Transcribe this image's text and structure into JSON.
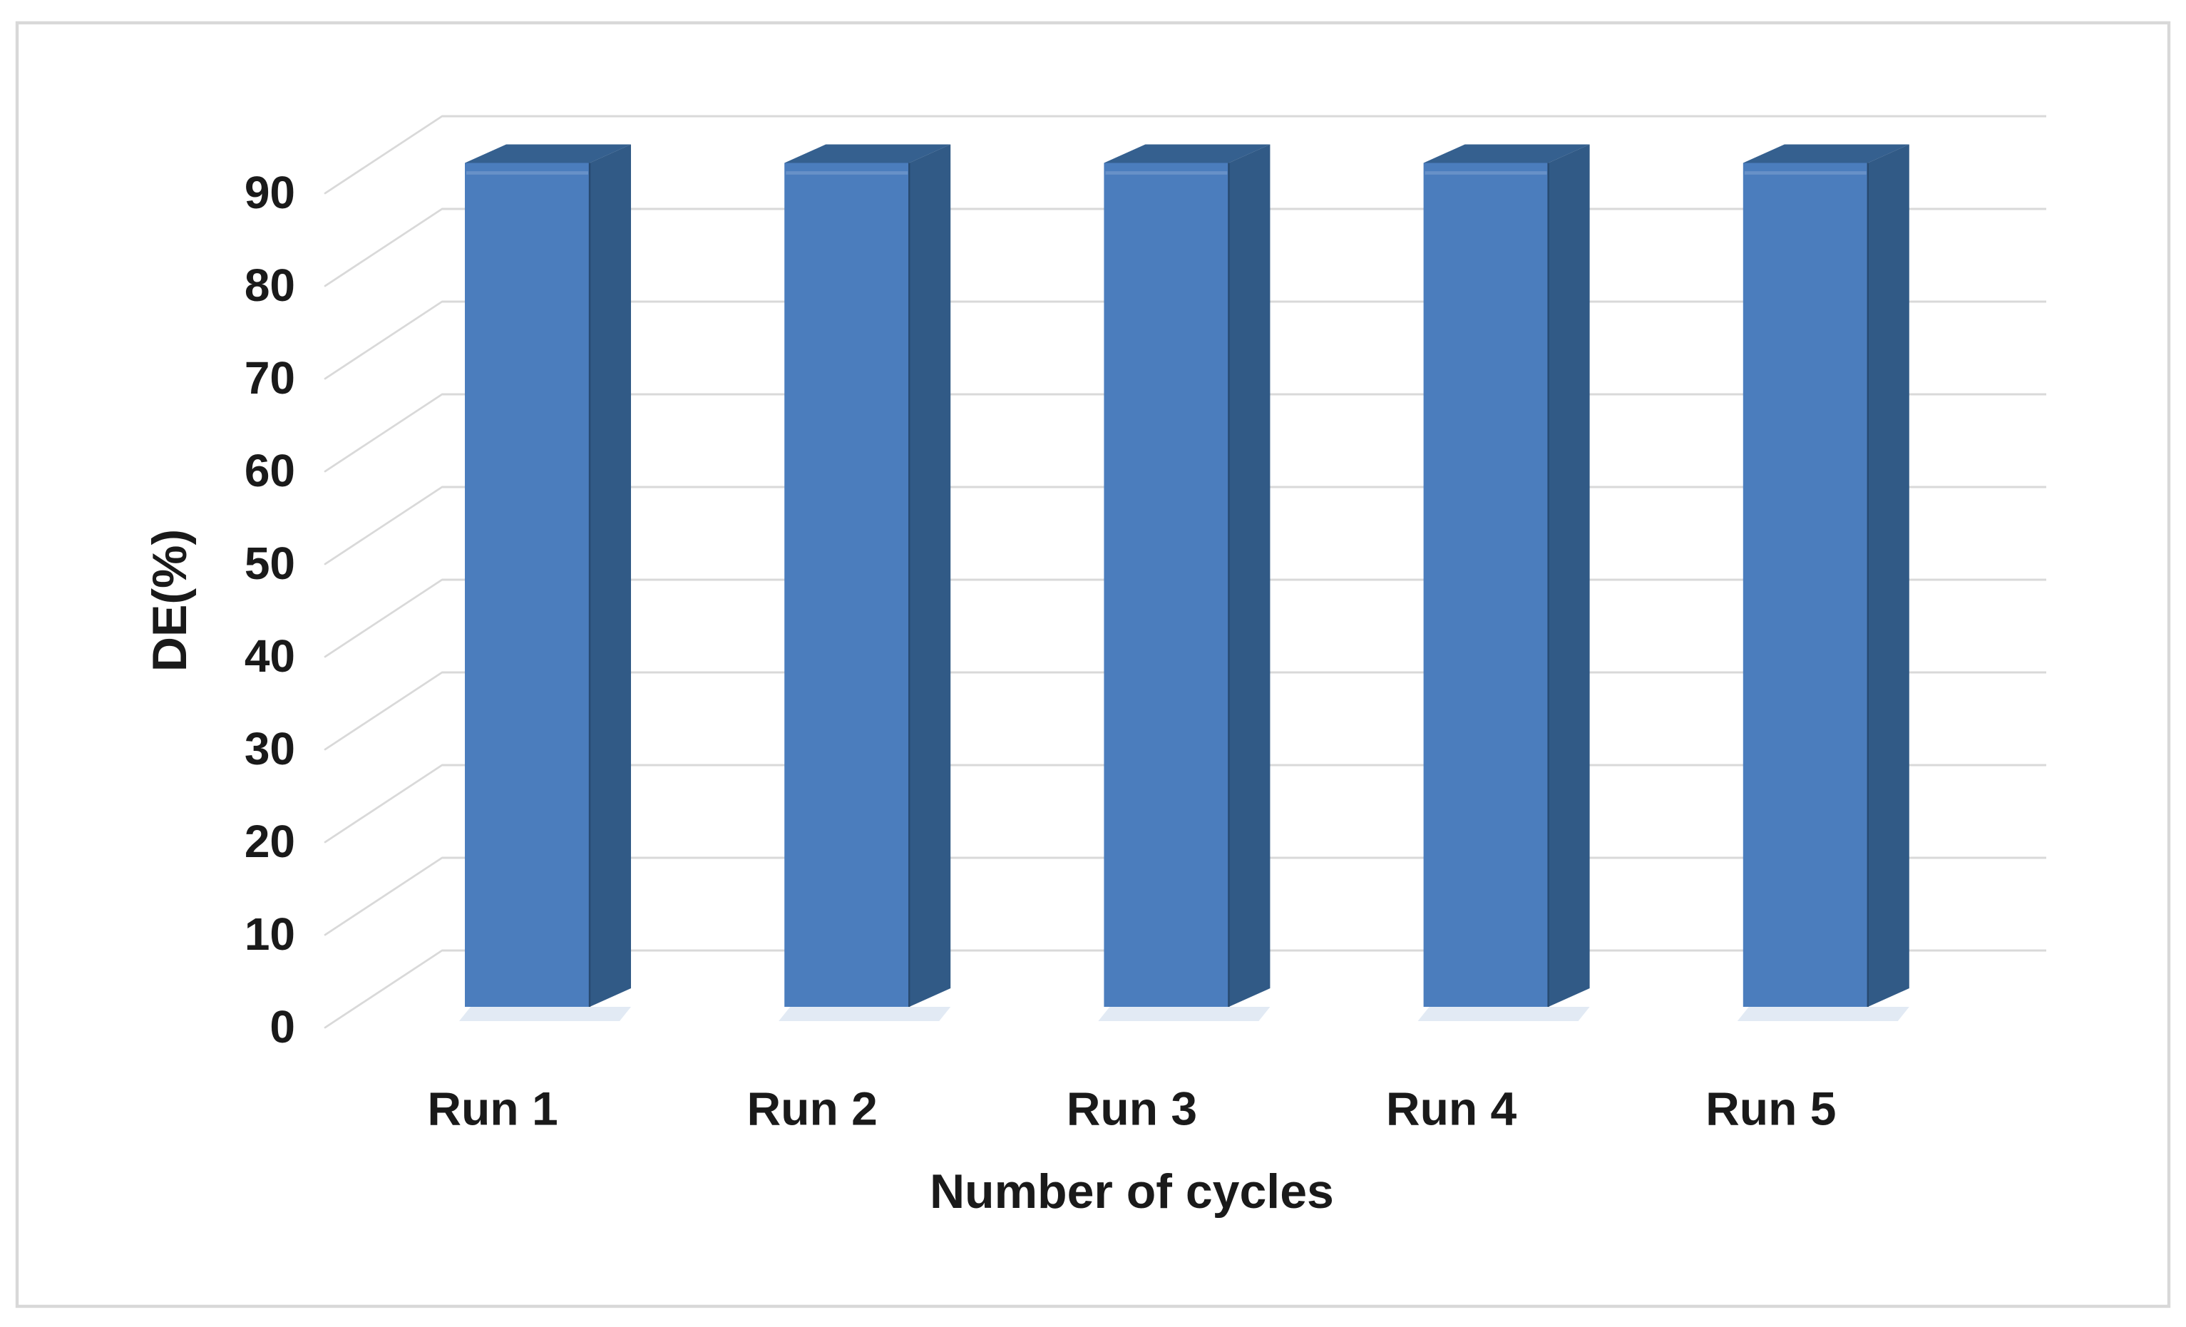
{
  "chart_data": {
    "type": "bar",
    "style": "3d-column",
    "title": "",
    "categories": [
      "Run 1",
      "Run 2",
      "Run 3",
      "Run 4",
      "Run 5"
    ],
    "values": [
      90,
      90,
      90,
      90,
      90
    ],
    "xlabel": "Number of cycles",
    "ylabel": "DE(%)",
    "ylim": [
      0,
      90
    ],
    "yticks": [
      0,
      10,
      20,
      30,
      40,
      50,
      60,
      70,
      80,
      90
    ],
    "grid": true,
    "legend": false,
    "colors": {
      "bar_front": "#4B7DBD",
      "bar_side": "#315A86",
      "bar_top": "#35608F",
      "bar_edge": "#27496F",
      "bar_shadow": "#E2EAF4",
      "gridline": "#D9D9D9",
      "frame_border": "#D8D8D8",
      "text": "#1A1A1A"
    }
  }
}
